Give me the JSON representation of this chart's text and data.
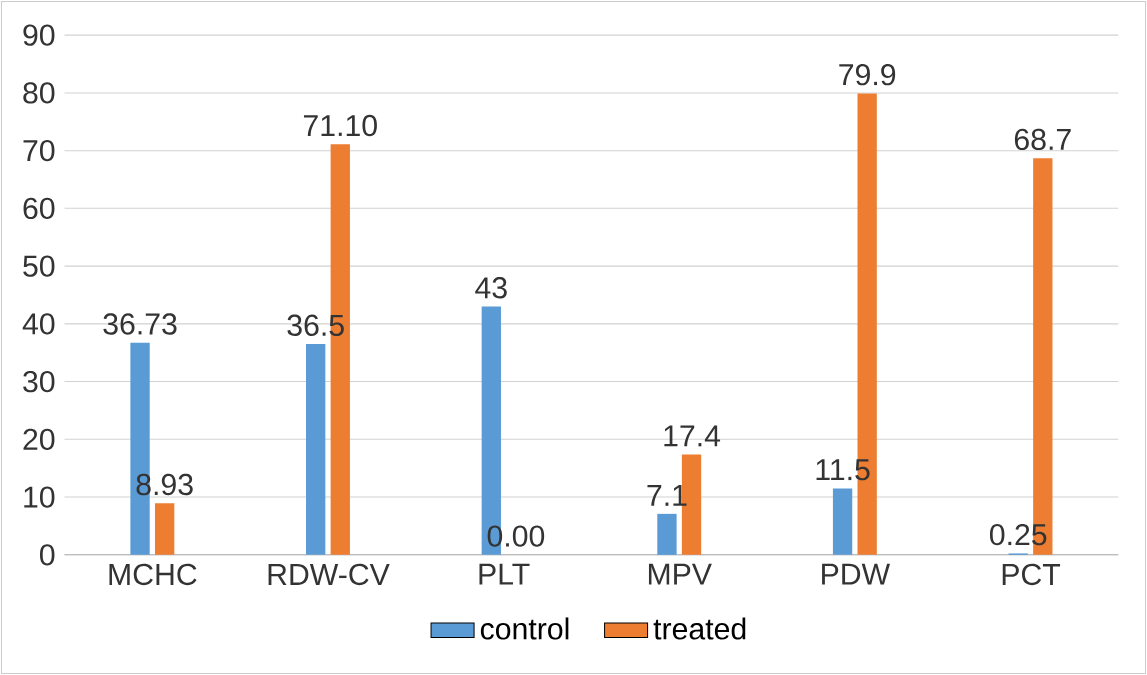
{
  "chart_data": {
    "type": "bar",
    "categories": [
      "MCHC",
      "RDW-CV",
      "PLT",
      "MPV",
      "PDW",
      "PCT"
    ],
    "series": [
      {
        "name": "control",
        "color": "#5b9bd5",
        "values": [
          36.73,
          36.5,
          43,
          7.1,
          11.5,
          0.25
        ],
        "value_labels": [
          "36.73",
          "36.5",
          "43",
          "7.1",
          "11.5",
          "0.25"
        ]
      },
      {
        "name": "treated",
        "color": "#ed7d31",
        "values": [
          8.93,
          71.1,
          0,
          17.4,
          79.9,
          68.7
        ],
        "value_labels": [
          "8.93",
          "71.10",
          "0.00",
          "17.4",
          "79.9",
          "68.7"
        ]
      }
    ],
    "ylim": [
      0,
      90
    ],
    "yticks": [
      0,
      10,
      20,
      30,
      40,
      50,
      60,
      70,
      80,
      90
    ],
    "grid": "y",
    "legend": "bottom"
  }
}
